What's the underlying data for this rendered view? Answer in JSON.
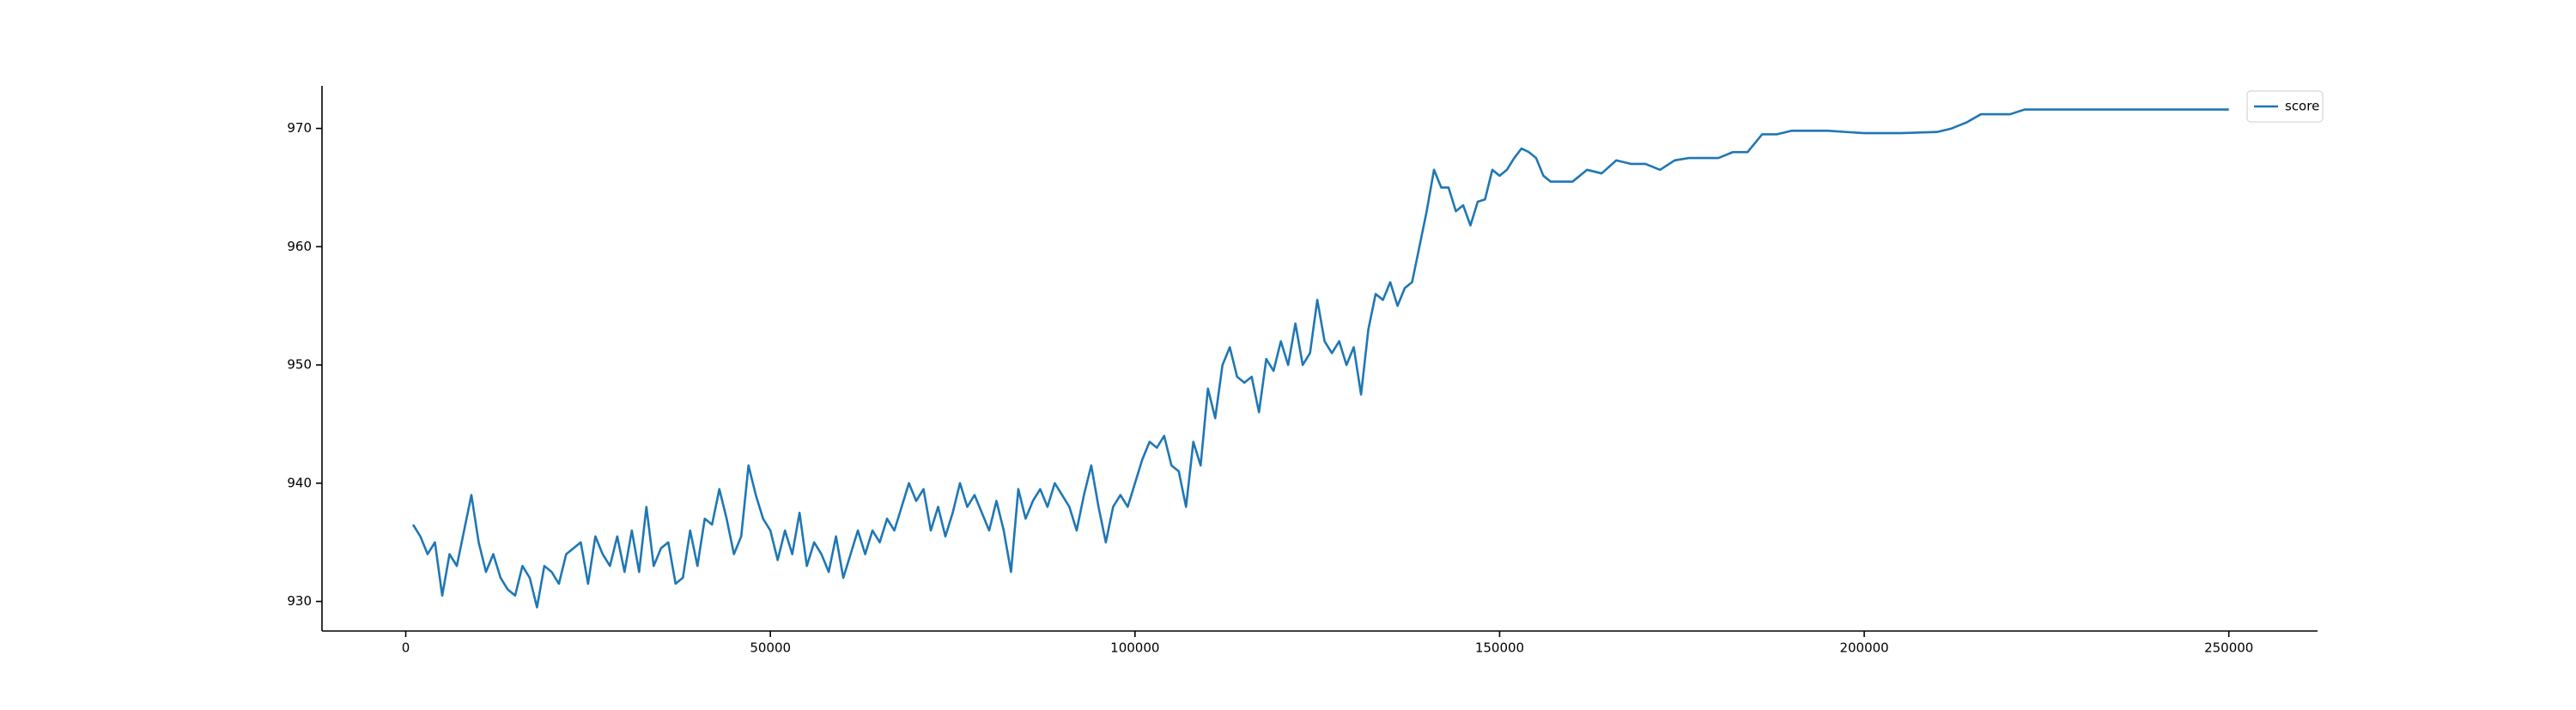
{
  "chart_data": {
    "type": "line",
    "x": [
      1000,
      2000,
      3000,
      4000,
      5000,
      6000,
      7000,
      8000,
      9000,
      10000,
      11000,
      12000,
      13000,
      14000,
      15000,
      16000,
      17000,
      18000,
      19000,
      20000,
      21000,
      22000,
      23000,
      24000,
      25000,
      26000,
      27000,
      28000,
      29000,
      30000,
      31000,
      32000,
      33000,
      34000,
      35000,
      36000,
      37000,
      38000,
      39000,
      40000,
      41000,
      42000,
      43000,
      44000,
      45000,
      46000,
      47000,
      48000,
      49000,
      50000,
      51000,
      52000,
      53000,
      54000,
      55000,
      56000,
      57000,
      58000,
      59000,
      60000,
      61000,
      62000,
      63000,
      64000,
      65000,
      66000,
      67000,
      68000,
      69000,
      70000,
      71000,
      72000,
      73000,
      74000,
      75000,
      76000,
      77000,
      78000,
      79000,
      80000,
      81000,
      82000,
      83000,
      84000,
      85000,
      86000,
      87000,
      88000,
      89000,
      90000,
      91000,
      92000,
      93000,
      94000,
      95000,
      96000,
      97000,
      98000,
      99000,
      100000,
      101000,
      102000,
      103000,
      104000,
      105000,
      106000,
      107000,
      108000,
      109000,
      110000,
      111000,
      112000,
      113000,
      114000,
      115000,
      116000,
      117000,
      118000,
      119000,
      120000,
      121000,
      122000,
      123000,
      124000,
      125000,
      126000,
      127000,
      128000,
      129000,
      130000,
      131000,
      132000,
      133000,
      134000,
      135000,
      136000,
      137000,
      138000,
      139000,
      140000,
      141000,
      142000,
      143000,
      144000,
      145000,
      146000,
      147000,
      148000,
      149000,
      150000,
      151000,
      152000,
      153000,
      154000,
      155000,
      156000,
      157000,
      158000,
      160000,
      162000,
      164000,
      166000,
      168000,
      170000,
      172000,
      174000,
      176000,
      178000,
      180000,
      182000,
      184000,
      186000,
      188000,
      190000,
      195000,
      200000,
      205000,
      210000,
      212000,
      214000,
      216000,
      218000,
      220000,
      222000,
      230000,
      240000,
      250000
    ],
    "series": [
      {
        "name": "score",
        "color": "#1f77b4",
        "values": [
          936.5,
          935.5,
          934,
          935,
          930.5,
          934,
          933,
          936,
          939,
          935,
          932.5,
          934,
          932,
          931,
          930.5,
          933,
          932,
          929.5,
          933,
          932.5,
          931.5,
          934,
          934.5,
          935,
          931.5,
          935.5,
          934,
          933,
          935.5,
          932.5,
          936,
          932.5,
          938,
          933,
          934.5,
          935,
          931.5,
          932,
          936,
          933,
          937,
          936.5,
          939.5,
          937,
          934,
          935.5,
          941.5,
          939,
          937,
          936,
          933.5,
          936,
          934,
          937.5,
          933,
          935,
          934,
          932.5,
          935.5,
          932,
          934,
          936,
          934,
          936,
          935,
          937,
          936,
          938,
          940,
          938.5,
          939.5,
          936,
          938,
          935.5,
          937.5,
          940,
          938,
          939,
          937.5,
          936,
          938.5,
          936,
          932.5,
          939.5,
          937,
          938.5,
          939.5,
          938,
          940,
          939,
          938,
          936,
          939,
          941.5,
          938,
          935,
          938,
          939,
          938,
          940,
          942,
          943.5,
          943,
          944,
          941.5,
          941,
          938,
          943.5,
          941.5,
          948,
          945.5,
          950,
          951.5,
          949,
          948.5,
          949,
          946,
          950.5,
          949.5,
          952,
          950,
          953.5,
          950,
          951,
          955.5,
          952,
          951,
          952,
          950,
          951.5,
          947.5,
          953,
          956,
          955.5,
          957,
          955,
          956.5,
          957,
          960,
          963,
          966.5,
          965,
          965,
          963,
          963.5,
          961.8,
          963.8,
          964,
          966.5,
          966,
          966.5,
          967.5,
          968.3,
          968,
          967.5,
          966,
          965.5,
          965.5,
          965.5,
          966.5,
          966.2,
          967.3,
          967,
          967,
          966.5,
          967.3,
          967.5,
          967.5,
          967.5,
          968,
          968,
          969.5,
          969.5,
          969.8,
          969.8,
          969.6,
          969.6,
          969.7,
          970,
          970.5,
          971.2,
          971.2,
          971.2,
          971.6,
          971.6,
          971.6,
          971.6
        ]
      }
    ],
    "xlim": [
      -11486,
      262162
    ],
    "ylim": [
      927.5,
      973.6
    ],
    "xticks": [
      0,
      50000,
      100000,
      150000,
      200000,
      250000
    ],
    "yticks": [
      930,
      940,
      950,
      960,
      970
    ],
    "legend": "upper right",
    "grid": false
  }
}
